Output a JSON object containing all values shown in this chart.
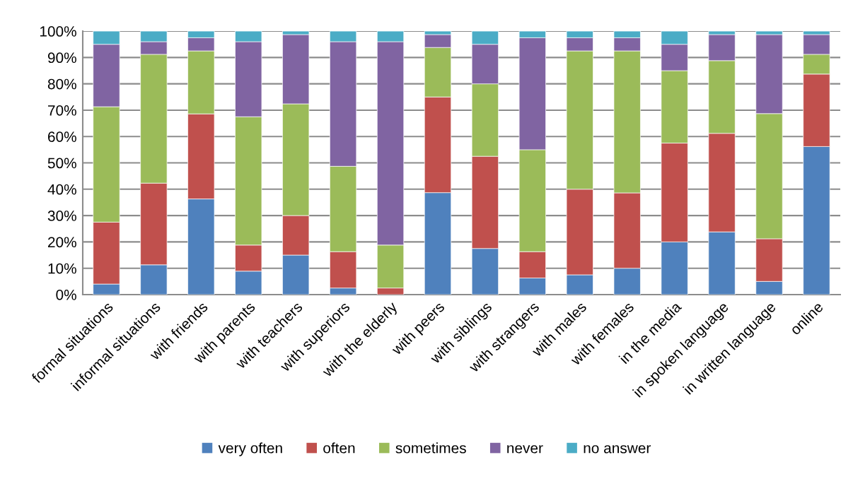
{
  "chart_data": {
    "type": "bar",
    "stacked": true,
    "categories": [
      "formal situations",
      "informal situations",
      "with friends",
      "with parents",
      "with teachers",
      "with superiors",
      "with the elderly",
      "with peers",
      "with siblings",
      "with strangers",
      "with males",
      "with females",
      "in the media",
      "in spoken language",
      "in written language",
      "online"
    ],
    "series": [
      {
        "name": "very often",
        "color": "#4f81bd",
        "values": [
          4,
          11.3,
          36.3,
          8.9,
          15,
          2.5,
          0,
          38.7,
          17.5,
          6.3,
          7.5,
          10,
          20,
          23.8,
          5,
          56.2
        ]
      },
      {
        "name": "often",
        "color": "#c0504d",
        "values": [
          23.5,
          31,
          32.3,
          9.9,
          15,
          13.8,
          2.5,
          36.3,
          35,
          10,
          32.5,
          28.6,
          37.5,
          37.4,
          16.2,
          27.5
        ]
      },
      {
        "name": "sometimes",
        "color": "#9bbb59",
        "values": [
          43.8,
          48.9,
          23.9,
          48.7,
          42.4,
          32.4,
          16.3,
          18.8,
          27.5,
          38.7,
          52.5,
          53.9,
          27.5,
          27.6,
          47.5,
          7.5
        ]
      },
      {
        "name": "never",
        "color": "#8064a2",
        "values": [
          23.7,
          4.8,
          5,
          28.5,
          26.3,
          47.3,
          77.2,
          4.9,
          15,
          42.5,
          5,
          5,
          10,
          9.9,
          30,
          7.5
        ]
      },
      {
        "name": "no answer",
        "color": "#4bacc6",
        "values": [
          5,
          4,
          2.5,
          4,
          1.3,
          4,
          4,
          1.3,
          5,
          2.5,
          2.5,
          2.5,
          5,
          1.3,
          1.3,
          1.3
        ]
      }
    ],
    "ylim": [
      0,
      100
    ],
    "yticks": [
      {
        "value": 0,
        "label": "0%"
      },
      {
        "value": 10,
        "label": "10%"
      },
      {
        "value": 20,
        "label": "20%"
      },
      {
        "value": 30,
        "label": "30%"
      },
      {
        "value": 40,
        "label": "40%"
      },
      {
        "value": 50,
        "label": "50%"
      },
      {
        "value": 60,
        "label": "60%"
      },
      {
        "value": 70,
        "label": "70%"
      },
      {
        "value": 80,
        "label": "80%"
      },
      {
        "value": 90,
        "label": "90%"
      },
      {
        "value": 100,
        "label": "100%"
      }
    ],
    "grid": "y",
    "legend": "bottom"
  }
}
